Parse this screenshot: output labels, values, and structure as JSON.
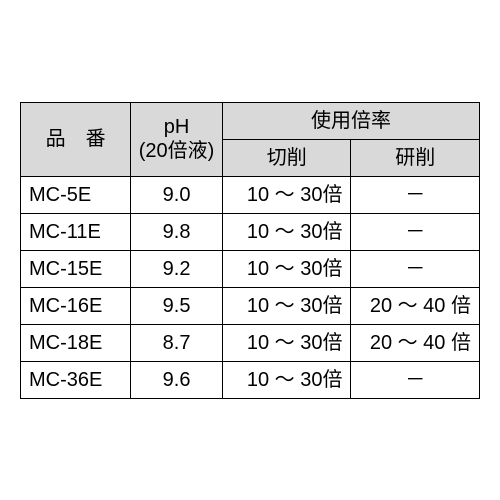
{
  "table": {
    "header": {
      "part_no": "品　番",
      "ph": "pH\n(20倍液)",
      "usage_rate": "使用倍率",
      "cutting": "切削",
      "grinding": "研削"
    },
    "rows": [
      {
        "pn": "MC-5E",
        "ph": "9.0",
        "cut": "10 ～ 30倍",
        "grind": "－"
      },
      {
        "pn": "MC-11E",
        "ph": "9.8",
        "cut": "10 ～ 30倍",
        "grind": "－"
      },
      {
        "pn": "MC-15E",
        "ph": "9.2",
        "cut": "10 ～ 30倍",
        "grind": "－"
      },
      {
        "pn": "MC-16E",
        "ph": "9.5",
        "cut": "10 ～ 30倍",
        "grind": "20 ～ 40 倍"
      },
      {
        "pn": "MC-18E",
        "ph": "8.7",
        "cut": "10 ～ 30倍",
        "grind": "20 ～ 40 倍"
      },
      {
        "pn": "MC-36E",
        "ph": "9.6",
        "cut": "10 ～ 30倍",
        "grind": "－"
      }
    ],
    "style": {
      "header_bg": "#d9d9d9",
      "border_color": "#000000",
      "font_size_pt": 15,
      "background_color": "#ffffff"
    }
  }
}
